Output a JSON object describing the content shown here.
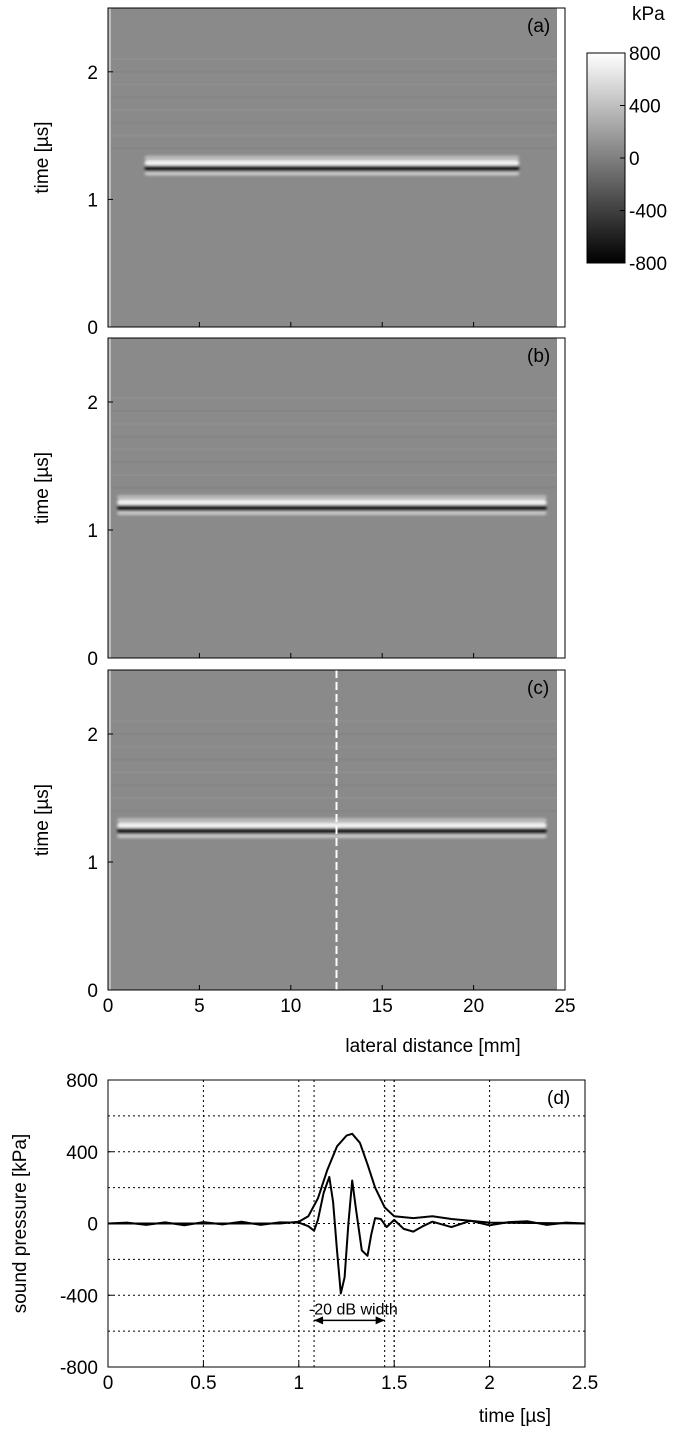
{
  "colorbar": {
    "unit": "kPa",
    "ticks": [
      "800",
      "400",
      "0",
      "-400",
      "-800"
    ],
    "range": [
      -800,
      800
    ]
  },
  "chart_data": [
    {
      "type": "heatmap",
      "panel_label": "(a)",
      "ylabel": "time [µs]",
      "xlabel": "",
      "xlim": [
        0,
        25
      ],
      "ylim": [
        0,
        2.5
      ],
      "yticks": [
        0,
        1,
        2
      ],
      "xticks": [
        0,
        5,
        10,
        15,
        20,
        25
      ],
      "band": {
        "time_us": 1.25,
        "x_start_mm": 2.0,
        "x_end_mm": 22.5
      },
      "colorscale": "gray",
      "vmin": -800,
      "vmax": 800
    },
    {
      "type": "heatmap",
      "panel_label": "(b)",
      "ylabel": "time [µs]",
      "xlabel": "",
      "xlim": [
        0,
        25
      ],
      "ylim": [
        0,
        2.5
      ],
      "yticks": [
        0,
        1,
        2
      ],
      "xticks": [
        0,
        5,
        10,
        15,
        20,
        25
      ],
      "band": {
        "time_us": 1.18,
        "x_start_mm": 0.5,
        "x_end_mm": 24.0
      },
      "colorscale": "gray",
      "vmin": -800,
      "vmax": 800
    },
    {
      "type": "heatmap",
      "panel_label": "(c)",
      "ylabel": "time [µs]",
      "xlabel": "lateral distance [mm]",
      "xlim": [
        0,
        25
      ],
      "ylim": [
        0,
        2.5
      ],
      "yticks": [
        0,
        1,
        2
      ],
      "xticks": [
        0,
        5,
        10,
        15,
        20,
        25
      ],
      "xticklabels": [
        "0",
        "5",
        "10",
        "15",
        "20",
        "25"
      ],
      "band": {
        "time_us": 1.25,
        "x_start_mm": 0.5,
        "x_end_mm": 24.0
      },
      "dashed_line_x_mm": 12.5,
      "colorscale": "gray",
      "vmin": -800,
      "vmax": 800
    },
    {
      "type": "line",
      "panel_label": "(d)",
      "xlabel": "time [µs]",
      "ylabel": "sound pressure [kPa]",
      "xlim": [
        0,
        2.5
      ],
      "ylim": [
        -800,
        800
      ],
      "xticks": [
        0,
        0.5,
        1,
        1.5,
        2,
        2.5
      ],
      "xticklabels": [
        "0",
        "0.5",
        "1",
        "1.5",
        "2",
        "2.5"
      ],
      "yticks": [
        -800,
        -400,
        0,
        400,
        800
      ],
      "yticklabels": [
        "-800",
        "-400",
        "0",
        "400",
        "800"
      ],
      "grid": true,
      "extra_vertical_gridlines": [
        1.08,
        1.45,
        1.5
      ],
      "annotation": {
        "text": "-20 dB width",
        "x_from": 1.08,
        "x_to": 1.45,
        "y": -540
      },
      "series": [
        {
          "kind": "waveform",
          "x": [
            0,
            0.1,
            0.2,
            0.3,
            0.4,
            0.5,
            0.6,
            0.7,
            0.8,
            0.9,
            1.0,
            1.05,
            1.08,
            1.1,
            1.13,
            1.16,
            1.18,
            1.2,
            1.22,
            1.24,
            1.26,
            1.28,
            1.3,
            1.33,
            1.36,
            1.38,
            1.4,
            1.43,
            1.46,
            1.5,
            1.55,
            1.6,
            1.65,
            1.7,
            1.8,
            1.9,
            2.0,
            2.1,
            2.2,
            2.3,
            2.4,
            2.5
          ],
          "y": [
            0,
            5,
            -8,
            6,
            -10,
            8,
            -5,
            10,
            -8,
            6,
            5,
            -15,
            -40,
            20,
            170,
            260,
            120,
            -150,
            -390,
            -300,
            0,
            240,
            80,
            -150,
            -180,
            -60,
            30,
            25,
            -20,
            20,
            -30,
            -45,
            -15,
            10,
            -20,
            15,
            -10,
            8,
            12,
            -8,
            5,
            0
          ]
        },
        {
          "kind": "envelope",
          "x": [
            0,
            0.9,
            1.0,
            1.05,
            1.1,
            1.15,
            1.2,
            1.25,
            1.28,
            1.32,
            1.36,
            1.4,
            1.45,
            1.5,
            1.6,
            1.7,
            1.8,
            2.0,
            2.5
          ],
          "y": [
            0,
            0,
            10,
            40,
            140,
            300,
            430,
            490,
            500,
            450,
            330,
            200,
            90,
            40,
            30,
            40,
            25,
            5,
            0
          ]
        }
      ]
    }
  ]
}
